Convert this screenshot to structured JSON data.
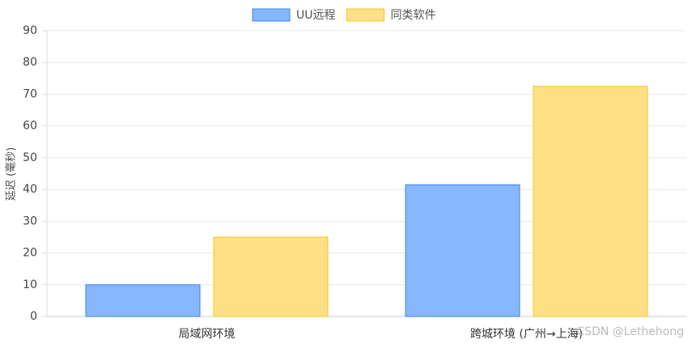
{
  "chart_data": {
    "type": "bar",
    "y_label": "延迟 (毫秒)",
    "categories": [
      "局域网环境",
      "跨城环境 (广州→上海)"
    ],
    "series": [
      {
        "name": "UU远程",
        "color": "#86b6fc",
        "border_color": "#3a86f0",
        "values": [
          10,
          41.5
        ]
      },
      {
        "name": "同类软件",
        "color": "#fee086",
        "border_color": "#f5c526",
        "values": [
          25,
          72.5
        ]
      }
    ],
    "ylim": [
      0,
      90
    ],
    "yticks": [
      0,
      10,
      20,
      30,
      40,
      50,
      60,
      70,
      80,
      90
    ],
    "grid": true,
    "legend": "top",
    "watermark": "CSDN @Lethehong"
  }
}
